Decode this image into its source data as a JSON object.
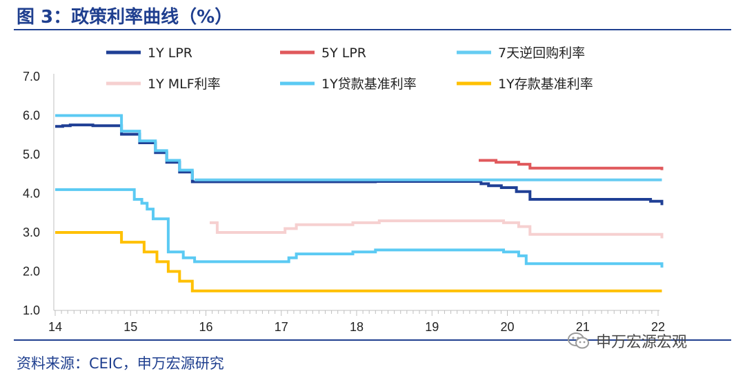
{
  "header": {
    "title": "图 3：政策利率曲线（%）"
  },
  "footer": {
    "source": "资料来源：CEIC，申万宏源研究",
    "watermark": "申万宏源宏观"
  },
  "chart_data": {
    "type": "line",
    "title": "政策利率曲线（%）",
    "xlabel": "",
    "ylabel": "",
    "xlim": [
      14,
      22.1
    ],
    "ylim": [
      1.0,
      7.0
    ],
    "x_ticks": [
      "14",
      "15",
      "16",
      "17",
      "18",
      "19",
      "20",
      "21",
      "22"
    ],
    "y_ticks": [
      "1.0",
      "2.0",
      "3.0",
      "4.0",
      "5.0",
      "6.0",
      "7.0"
    ],
    "legend_position": "top",
    "series": [
      {
        "name": "1Y LPR",
        "color": "#1f3f95",
        "width": 4,
        "points": [
          [
            14,
            5.72
          ],
          [
            14.1,
            5.72
          ],
          [
            14.1,
            5.74
          ],
          [
            14.2,
            5.74
          ],
          [
            14.2,
            5.76
          ],
          [
            14.5,
            5.76
          ],
          [
            14.5,
            5.74
          ],
          [
            14.88,
            5.74
          ],
          [
            14.88,
            5.52
          ],
          [
            15.12,
            5.52
          ],
          [
            15.12,
            5.3
          ],
          [
            15.33,
            5.3
          ],
          [
            15.33,
            5.05
          ],
          [
            15.48,
            5.05
          ],
          [
            15.48,
            4.8
          ],
          [
            15.65,
            4.8
          ],
          [
            15.65,
            4.55
          ],
          [
            15.82,
            4.55
          ],
          [
            15.82,
            4.3
          ],
          [
            18.25,
            4.3
          ],
          [
            18.25,
            4.31
          ],
          [
            19.65,
            4.31
          ],
          [
            19.65,
            4.25
          ],
          [
            19.75,
            4.25
          ],
          [
            19.75,
            4.2
          ],
          [
            19.92,
            4.2
          ],
          [
            19.92,
            4.15
          ],
          [
            20.12,
            4.15
          ],
          [
            20.12,
            4.05
          ],
          [
            20.3,
            4.05
          ],
          [
            20.3,
            3.85
          ],
          [
            21.9,
            3.85
          ],
          [
            21.9,
            3.8
          ],
          [
            22.05,
            3.8
          ],
          [
            22.05,
            3.7
          ]
        ]
      },
      {
        "name": "5Y LPR",
        "color": "#e0595c",
        "width": 4,
        "points": [
          [
            19.62,
            4.85
          ],
          [
            19.85,
            4.85
          ],
          [
            19.85,
            4.8
          ],
          [
            20.15,
            4.8
          ],
          [
            20.15,
            4.75
          ],
          [
            20.3,
            4.75
          ],
          [
            20.3,
            4.65
          ],
          [
            22.05,
            4.65
          ],
          [
            22.05,
            4.6
          ]
        ]
      },
      {
        "name": "7天逆回购利率",
        "color": "#66ccf2",
        "width": 4,
        "points": [
          [
            15.85,
            4.35
          ],
          [
            22.05,
            4.35
          ]
        ]
      },
      {
        "name": "1Y MLF利率",
        "color": "#f6d0d0",
        "width": 4,
        "points": [
          [
            16.05,
            3.25
          ],
          [
            16.15,
            3.25
          ],
          [
            16.15,
            3.0
          ],
          [
            17.05,
            3.0
          ],
          [
            17.05,
            3.1
          ],
          [
            17.2,
            3.1
          ],
          [
            17.2,
            3.2
          ],
          [
            17.95,
            3.2
          ],
          [
            17.95,
            3.25
          ],
          [
            18.3,
            3.25
          ],
          [
            18.3,
            3.3
          ],
          [
            19.95,
            3.3
          ],
          [
            19.95,
            3.25
          ],
          [
            20.15,
            3.25
          ],
          [
            20.15,
            3.15
          ],
          [
            20.3,
            3.15
          ],
          [
            20.3,
            2.95
          ],
          [
            22.05,
            2.95
          ],
          [
            22.05,
            2.85
          ]
        ]
      },
      {
        "name": "1Y贷款基准利率",
        "color": "#5bcaf3",
        "width": 4,
        "points": [
          [
            14,
            6.0
          ],
          [
            14.88,
            6.0
          ],
          [
            14.88,
            5.6
          ],
          [
            15.12,
            5.6
          ],
          [
            15.12,
            5.35
          ],
          [
            15.33,
            5.35
          ],
          [
            15.33,
            5.1
          ],
          [
            15.48,
            5.1
          ],
          [
            15.48,
            4.85
          ],
          [
            15.65,
            4.85
          ],
          [
            15.65,
            4.6
          ],
          [
            15.82,
            4.6
          ],
          [
            15.82,
            4.35
          ]
        ]
      },
      {
        "name": "1Y贷款基准利率_b",
        "legend": false,
        "color": "#5bcaf3",
        "width": 4,
        "points": [
          [
            14,
            4.1
          ],
          [
            15.05,
            4.1
          ],
          [
            15.05,
            3.85
          ],
          [
            15.15,
            3.85
          ],
          [
            15.15,
            3.75
          ],
          [
            15.22,
            3.75
          ],
          [
            15.22,
            3.6
          ],
          [
            15.3,
            3.6
          ],
          [
            15.3,
            3.35
          ],
          [
            15.5,
            3.35
          ],
          [
            15.5,
            2.5
          ],
          [
            15.7,
            2.5
          ],
          [
            15.7,
            2.35
          ],
          [
            15.85,
            2.35
          ],
          [
            15.85,
            2.25
          ],
          [
            17.1,
            2.25
          ],
          [
            17.1,
            2.35
          ],
          [
            17.2,
            2.35
          ],
          [
            17.2,
            2.45
          ],
          [
            17.95,
            2.45
          ],
          [
            17.95,
            2.5
          ],
          [
            18.25,
            2.5
          ],
          [
            18.25,
            2.55
          ],
          [
            19.95,
            2.55
          ],
          [
            19.95,
            2.5
          ],
          [
            20.15,
            2.5
          ],
          [
            20.15,
            2.4
          ],
          [
            20.25,
            2.4
          ],
          [
            20.25,
            2.2
          ],
          [
            22.05,
            2.2
          ],
          [
            22.05,
            2.1
          ]
        ]
      },
      {
        "name": "1Y存款基准利率",
        "color": "#ffc000",
        "width": 4,
        "points": [
          [
            14,
            3.0
          ],
          [
            14.88,
            3.0
          ],
          [
            14.88,
            2.75
          ],
          [
            15.18,
            2.75
          ],
          [
            15.18,
            2.5
          ],
          [
            15.35,
            2.5
          ],
          [
            15.35,
            2.25
          ],
          [
            15.5,
            2.25
          ],
          [
            15.5,
            2.0
          ],
          [
            15.65,
            2.0
          ],
          [
            15.65,
            1.75
          ],
          [
            15.82,
            1.75
          ],
          [
            15.82,
            1.5
          ],
          [
            22.05,
            1.5
          ]
        ]
      }
    ]
  }
}
